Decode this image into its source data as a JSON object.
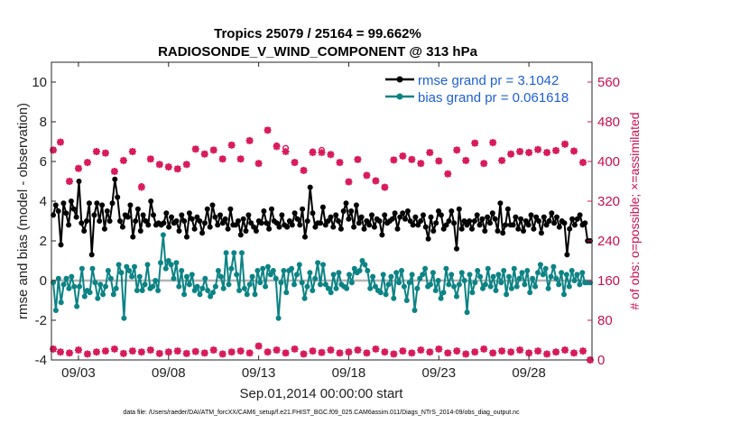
{
  "chart_data": {
    "type": "line",
    "title_line1": "Tropics 25079 / 25164 = 99.662%",
    "title_line2": "RADIOSONDE_V_WIND_COMPONENT @ 313 hPa",
    "xlabel": "Sep.01,2014 00:00:00 start",
    "ylabel": "rmse and bias (model - observation)",
    "ylabel_right": "# of obs: o=possible; ×=assimilated",
    "footer": "data file: /Users/raeder/DAI/ATM_forcXX/CAM6_setup/f.e21.FHIST_BGC.f09_025.CAM6assim.011/Diags_NTrS_2014-09/obs_diag_output.nc",
    "xlim": [
      1.5,
      31.5
    ],
    "ylim": [
      -4,
      11
    ],
    "ylim_right": [
      0,
      600
    ],
    "x_ticks": [
      3,
      8,
      13,
      18,
      23,
      28
    ],
    "x_tick_labels": [
      "09/03",
      "09/08",
      "09/13",
      "09/18",
      "09/23",
      "09/28"
    ],
    "y_ticks": [
      -4,
      -2,
      0,
      2,
      4,
      6,
      8,
      10
    ],
    "y_tick_labels": [
      "-4",
      "-2",
      "0",
      "2",
      "4",
      "6",
      "8",
      "10"
    ],
    "y_right_ticks": [
      0,
      80,
      160,
      240,
      320,
      400,
      480,
      560
    ],
    "y_right_tick_labels": [
      "0",
      "80",
      "160",
      "240",
      "320",
      "400",
      "480",
      "560"
    ],
    "colors": {
      "rmse": "#000000",
      "bias": "#0c8384",
      "obs": "#d81b5b",
      "zero_line": "#b4b4b4",
      "legend_text": "#1f5fd6"
    },
    "series": [
      {
        "name": "rmse grand pr = 3.1042",
        "values": [
          3.3,
          3.8,
          3.5,
          1.8,
          3.9,
          3.4,
          2.8,
          4.0,
          3.6,
          3.2,
          5.0,
          2.9,
          2.5,
          3.0,
          3.9,
          1.3,
          3.3,
          3.9,
          3.0,
          3.8,
          2.6,
          3.5,
          3.0,
          3.9,
          5.1,
          4.2,
          3.0,
          2.7,
          3.3,
          3.2,
          3.8,
          2.2,
          3.0,
          3.6,
          2.5,
          3.3,
          3.0,
          2.8,
          4.0,
          3.3,
          2.8,
          2.9,
          2.8,
          2.9,
          3.4,
          2.7,
          3.2,
          2.9,
          3.0,
          2.5,
          3.3,
          3.0,
          2.2,
          3.4,
          3.1,
          2.6,
          3.2,
          3.0,
          2.4,
          2.9,
          3.6,
          2.7,
          3.8,
          3.2,
          2.8,
          3.3,
          2.9,
          3.1,
          2.6,
          3.6,
          2.8,
          2.8,
          3.0,
          2.3,
          3.1,
          2.5,
          3.3,
          2.9,
          2.7,
          2.5,
          3.0,
          2.9,
          3.5,
          2.9,
          2.6,
          3.6,
          3.0,
          2.9,
          2.7,
          3.3,
          2.8,
          2.7,
          3.0,
          2.8,
          3.4,
          3.1,
          2.8,
          3.6,
          2.2,
          3.0,
          4.7,
          3.4,
          2.7,
          2.9,
          2.9,
          3.7,
          2.8,
          3.0,
          3.2,
          2.7,
          3.3,
          3.0,
          2.6,
          3.5,
          3.9,
          3.1,
          3.5,
          2.7,
          3.8,
          2.9,
          3.2,
          2.6,
          3.0,
          2.8,
          3.3,
          2.7,
          3.1,
          3.0,
          2.3,
          3.3,
          2.9,
          3.0,
          3.1,
          3.4,
          2.6,
          3.2,
          3.4,
          3.1,
          3.5,
          3.0,
          2.8,
          3.2,
          2.8,
          3.0,
          3.3,
          2.7,
          2.1,
          3.2,
          2.5,
          2.9,
          3.5,
          3.3,
          2.6,
          2.8,
          3.0,
          3.5,
          2.9,
          1.6,
          3.6,
          2.6,
          3.0,
          2.8,
          3.0,
          2.6,
          3.0,
          3.3,
          2.8,
          3.1,
          2.5,
          3.2,
          2.9,
          3.4,
          3.1,
          2.5,
          3.9,
          2.4,
          2.8,
          3.6,
          2.8,
          2.8,
          3.2,
          2.6,
          3.1,
          2.5,
          3.0,
          2.8,
          3.3,
          2.6,
          3.2,
          3.0,
          2.4,
          3.2,
          2.8,
          3.0,
          3.4,
          2.9,
          3.2,
          2.7,
          3.0,
          2.9,
          1.3,
          2.6,
          3.1,
          2.8,
          3.1,
          3.3,
          2.8,
          2.9,
          2.0,
          2.0
        ]
      },
      {
        "name": "bias grand pr = 0.061618",
        "values": [
          -0.1,
          -1.5,
          0.1,
          -1.1,
          -0.2,
          0.1,
          -0.4,
          0.2,
          -0.3,
          -1.3,
          -0.3,
          0.6,
          -0.8,
          -0.5,
          -0.6,
          0.6,
          -0.1,
          -0.9,
          -0.2,
          -0.7,
          -0.3,
          0.5,
          0.1,
          -0.7,
          -0.4,
          0.8,
          0.4,
          -1.9,
          0.7,
          0.5,
          0.2,
          0.7,
          -0.5,
          0.2,
          -0.5,
          -0.2,
          0.8,
          -0.4,
          -0.3,
          0.0,
          -0.5,
          0.9,
          2.3,
          0.6,
          1.0,
          0.8,
          0.1,
          0.9,
          -0.3,
          0.5,
          -0.7,
          0.2,
          -0.2,
          0.3,
          -0.5,
          -0.3,
          -0.7,
          -0.4,
          0.1,
          -0.5,
          -0.8,
          -0.6,
          -0.3,
          0.5,
          0.2,
          -0.4,
          1.4,
          -0.2,
          0.6,
          1.4,
          0.3,
          -0.5,
          1.4,
          -0.4,
          -0.7,
          -0.2,
          0.2,
          -0.7,
          0.5,
          -0.1,
          0.6,
          -0.3,
          0.7,
          0.3,
          0.5,
          0.1,
          -1.9,
          -0.1,
          0.5,
          -0.6,
          0.5,
          0.6,
          -0.2,
          0.3,
          0.8,
          -0.1,
          -0.9,
          -0.3,
          0.4,
          -0.5,
          0.1,
          0.9,
          -0.2,
          0.8,
          -0.2,
          -0.4,
          -0.6,
          0.3,
          -0.4,
          0.4,
          -0.2,
          -0.3,
          -0.4,
          0.3,
          -0.1,
          0.6,
          0.4,
          0.5,
          1.0,
          0.8,
          0.5,
          -0.4,
          0.2,
          -0.3,
          -0.5,
          -0.6,
          0.3,
          -0.7,
          -0.2,
          0.2,
          -0.9,
          0.4,
          -0.1,
          0.5,
          -0.3,
          -1.0,
          -0.1,
          0.3,
          -1.5,
          -0.4,
          0.1,
          0.3,
          0.6,
          -0.3,
          -0.2,
          0.4,
          -0.5,
          0.0,
          -0.9,
          -0.6,
          0.6,
          -0.2,
          0.3,
          -0.3,
          -0.8,
          -0.2,
          0.4,
          0.0,
          -1.6,
          0.3,
          -0.6,
          -0.1,
          0.5,
          0.2,
          -0.4,
          -0.2,
          0.6,
          -0.3,
          0.2,
          -0.5,
          0.3,
          -0.1,
          0.5,
          -0.7,
          0.2,
          -0.4,
          0.6,
          -0.3,
          0.1,
          0.4,
          -0.2,
          0.5,
          -0.6,
          0.1,
          -0.3,
          0.4,
          0.8,
          0.3,
          0.6,
          -0.4,
          0.2,
          0.7,
          0.1,
          -0.2,
          0.4,
          -0.7,
          0.3,
          -0.3,
          0.5,
          0.0,
          0.3,
          -0.2,
          0.4,
          -0.1,
          -0.1,
          -0.1
        ]
      }
    ],
    "obs_possible": [
      {
        "x": 1.6,
        "y": 423
      },
      {
        "x": 2.0,
        "y": 439
      },
      {
        "x": 2.5,
        "y": 360
      },
      {
        "x": 3.0,
        "y": 386
      },
      {
        "x": 3.5,
        "y": 398
      },
      {
        "x": 4.0,
        "y": 420
      },
      {
        "x": 4.5,
        "y": 417
      },
      {
        "x": 5.0,
        "y": 380
      },
      {
        "x": 5.5,
        "y": 402
      },
      {
        "x": 6.0,
        "y": 420
      },
      {
        "x": 6.5,
        "y": 350
      },
      {
        "x": 7.0,
        "y": 405
      },
      {
        "x": 7.5,
        "y": 394
      },
      {
        "x": 8.0,
        "y": 389
      },
      {
        "x": 8.5,
        "y": 385
      },
      {
        "x": 9.0,
        "y": 394
      },
      {
        "x": 9.5,
        "y": 425
      },
      {
        "x": 10.0,
        "y": 415
      },
      {
        "x": 10.5,
        "y": 423
      },
      {
        "x": 11.0,
        "y": 405
      },
      {
        "x": 11.5,
        "y": 433
      },
      {
        "x": 12.0,
        "y": 405
      },
      {
        "x": 12.5,
        "y": 442
      },
      {
        "x": 13.0,
        "y": 396
      },
      {
        "x": 13.5,
        "y": 463
      },
      {
        "x": 14.0,
        "y": 432
      },
      {
        "x": 14.5,
        "y": 427
      },
      {
        "x": 15.0,
        "y": 398
      },
      {
        "x": 15.5,
        "y": 382
      },
      {
        "x": 16.0,
        "y": 420
      },
      {
        "x": 16.5,
        "y": 423
      },
      {
        "x": 17.0,
        "y": 414
      },
      {
        "x": 17.5,
        "y": 398
      },
      {
        "x": 18.0,
        "y": 359
      },
      {
        "x": 18.5,
        "y": 404
      },
      {
        "x": 19.0,
        "y": 372
      },
      {
        "x": 19.5,
        "y": 361
      },
      {
        "x": 20.0,
        "y": 348
      },
      {
        "x": 20.5,
        "y": 403
      },
      {
        "x": 21.0,
        "y": 411
      },
      {
        "x": 21.5,
        "y": 404
      },
      {
        "x": 22.0,
        "y": 396
      },
      {
        "x": 22.5,
        "y": 418
      },
      {
        "x": 23.0,
        "y": 401
      },
      {
        "x": 23.5,
        "y": 375
      },
      {
        "x": 24.0,
        "y": 423
      },
      {
        "x": 24.5,
        "y": 402
      },
      {
        "x": 25.0,
        "y": 437
      },
      {
        "x": 25.5,
        "y": 396
      },
      {
        "x": 26.0,
        "y": 438
      },
      {
        "x": 26.5,
        "y": 402
      },
      {
        "x": 27.0,
        "y": 415
      },
      {
        "x": 27.5,
        "y": 420
      },
      {
        "x": 28.0,
        "y": 418
      },
      {
        "x": 28.5,
        "y": 424
      },
      {
        "x": 29.0,
        "y": 418
      },
      {
        "x": 29.5,
        "y": 422
      },
      {
        "x": 30.0,
        "y": 435
      },
      {
        "x": 30.5,
        "y": 421
      },
      {
        "x": 31.0,
        "y": 398
      }
    ],
    "obs_assimilated": [
      {
        "x": 1.6,
        "y": 423
      },
      {
        "x": 2.0,
        "y": 439
      },
      {
        "x": 2.5,
        "y": 360
      },
      {
        "x": 3.0,
        "y": 386
      },
      {
        "x": 3.5,
        "y": 398
      },
      {
        "x": 4.0,
        "y": 420
      },
      {
        "x": 4.5,
        "y": 417
      },
      {
        "x": 5.0,
        "y": 380
      },
      {
        "x": 5.5,
        "y": 402
      },
      {
        "x": 6.0,
        "y": 420
      },
      {
        "x": 6.5,
        "y": 348
      },
      {
        "x": 7.0,
        "y": 405
      },
      {
        "x": 7.5,
        "y": 394
      },
      {
        "x": 8.0,
        "y": 389
      },
      {
        "x": 8.5,
        "y": 385
      },
      {
        "x": 9.0,
        "y": 394
      },
      {
        "x": 9.5,
        "y": 425
      },
      {
        "x": 10.0,
        "y": 415
      },
      {
        "x": 10.5,
        "y": 423
      },
      {
        "x": 11.0,
        "y": 405
      },
      {
        "x": 11.5,
        "y": 433
      },
      {
        "x": 12.0,
        "y": 405
      },
      {
        "x": 12.5,
        "y": 442
      },
      {
        "x": 13.0,
        "y": 396
      },
      {
        "x": 13.5,
        "y": 463
      },
      {
        "x": 14.0,
        "y": 430
      },
      {
        "x": 14.5,
        "y": 420
      },
      {
        "x": 15.0,
        "y": 398
      },
      {
        "x": 15.5,
        "y": 382
      },
      {
        "x": 16.0,
        "y": 418
      },
      {
        "x": 16.5,
        "y": 418
      },
      {
        "x": 17.0,
        "y": 414
      },
      {
        "x": 17.5,
        "y": 398
      },
      {
        "x": 18.0,
        "y": 359
      },
      {
        "x": 18.5,
        "y": 404
      },
      {
        "x": 19.0,
        "y": 372
      },
      {
        "x": 19.5,
        "y": 361
      },
      {
        "x": 20.0,
        "y": 348
      },
      {
        "x": 20.5,
        "y": 403
      },
      {
        "x": 21.0,
        "y": 411
      },
      {
        "x": 21.5,
        "y": 404
      },
      {
        "x": 22.0,
        "y": 396
      },
      {
        "x": 22.5,
        "y": 418
      },
      {
        "x": 23.0,
        "y": 401
      },
      {
        "x": 23.5,
        "y": 375
      },
      {
        "x": 24.0,
        "y": 423
      },
      {
        "x": 24.5,
        "y": 402
      },
      {
        "x": 25.0,
        "y": 437
      },
      {
        "x": 25.5,
        "y": 396
      },
      {
        "x": 26.0,
        "y": 438
      },
      {
        "x": 26.5,
        "y": 402
      },
      {
        "x": 27.0,
        "y": 415
      },
      {
        "x": 27.5,
        "y": 420
      },
      {
        "x": 28.0,
        "y": 418
      },
      {
        "x": 28.5,
        "y": 424
      },
      {
        "x": 29.0,
        "y": 418
      },
      {
        "x": 29.5,
        "y": 422
      },
      {
        "x": 30.0,
        "y": 435
      },
      {
        "x": 30.5,
        "y": 421
      },
      {
        "x": 31.0,
        "y": 398
      }
    ],
    "obs_low_possible": [
      {
        "x": 1.6,
        "y": 22
      },
      {
        "x": 2.0,
        "y": 16
      },
      {
        "x": 2.5,
        "y": 14
      },
      {
        "x": 3.0,
        "y": 20
      },
      {
        "x": 3.5,
        "y": 12
      },
      {
        "x": 4.0,
        "y": 16
      },
      {
        "x": 4.5,
        "y": 18
      },
      {
        "x": 5.0,
        "y": 22
      },
      {
        "x": 5.5,
        "y": 13
      },
      {
        "x": 6.0,
        "y": 18
      },
      {
        "x": 6.5,
        "y": 16
      },
      {
        "x": 7.0,
        "y": 20
      },
      {
        "x": 7.5,
        "y": 13
      },
      {
        "x": 8.0,
        "y": 16
      },
      {
        "x": 8.5,
        "y": 18
      },
      {
        "x": 9.0,
        "y": 13
      },
      {
        "x": 9.5,
        "y": 17
      },
      {
        "x": 10.0,
        "y": 14
      },
      {
        "x": 10.5,
        "y": 20
      },
      {
        "x": 11.0,
        "y": 12
      },
      {
        "x": 11.5,
        "y": 16
      },
      {
        "x": 12.0,
        "y": 18
      },
      {
        "x": 12.5,
        "y": 14
      },
      {
        "x": 13.0,
        "y": 28
      },
      {
        "x": 13.5,
        "y": 16
      },
      {
        "x": 14.0,
        "y": 20
      },
      {
        "x": 14.5,
        "y": 14
      },
      {
        "x": 15.0,
        "y": 22
      },
      {
        "x": 15.5,
        "y": 12
      },
      {
        "x": 16.0,
        "y": 18
      },
      {
        "x": 16.5,
        "y": 15
      },
      {
        "x": 17.0,
        "y": 20
      },
      {
        "x": 17.5,
        "y": 14
      },
      {
        "x": 18.0,
        "y": 16
      },
      {
        "x": 18.5,
        "y": 20
      },
      {
        "x": 19.0,
        "y": 14
      },
      {
        "x": 19.5,
        "y": 22
      },
      {
        "x": 20.0,
        "y": 16
      },
      {
        "x": 20.5,
        "y": 12
      },
      {
        "x": 21.0,
        "y": 18
      },
      {
        "x": 21.5,
        "y": 14
      },
      {
        "x": 22.0,
        "y": 20
      },
      {
        "x": 22.5,
        "y": 16
      },
      {
        "x": 23.0,
        "y": 22
      },
      {
        "x": 23.5,
        "y": 14
      },
      {
        "x": 24.0,
        "y": 18
      },
      {
        "x": 24.5,
        "y": 12
      },
      {
        "x": 25.0,
        "y": 16
      },
      {
        "x": 25.5,
        "y": 22
      },
      {
        "x": 26.0,
        "y": 14
      },
      {
        "x": 26.5,
        "y": 18
      },
      {
        "x": 27.0,
        "y": 16
      },
      {
        "x": 27.5,
        "y": 20
      },
      {
        "x": 28.0,
        "y": 14
      },
      {
        "x": 28.5,
        "y": 18
      },
      {
        "x": 29.0,
        "y": 12
      },
      {
        "x": 29.5,
        "y": 16
      },
      {
        "x": 30.0,
        "y": 20
      },
      {
        "x": 30.5,
        "y": 14
      },
      {
        "x": 31.0,
        "y": 18
      },
      {
        "x": 31.4,
        "y": 0
      }
    ]
  }
}
